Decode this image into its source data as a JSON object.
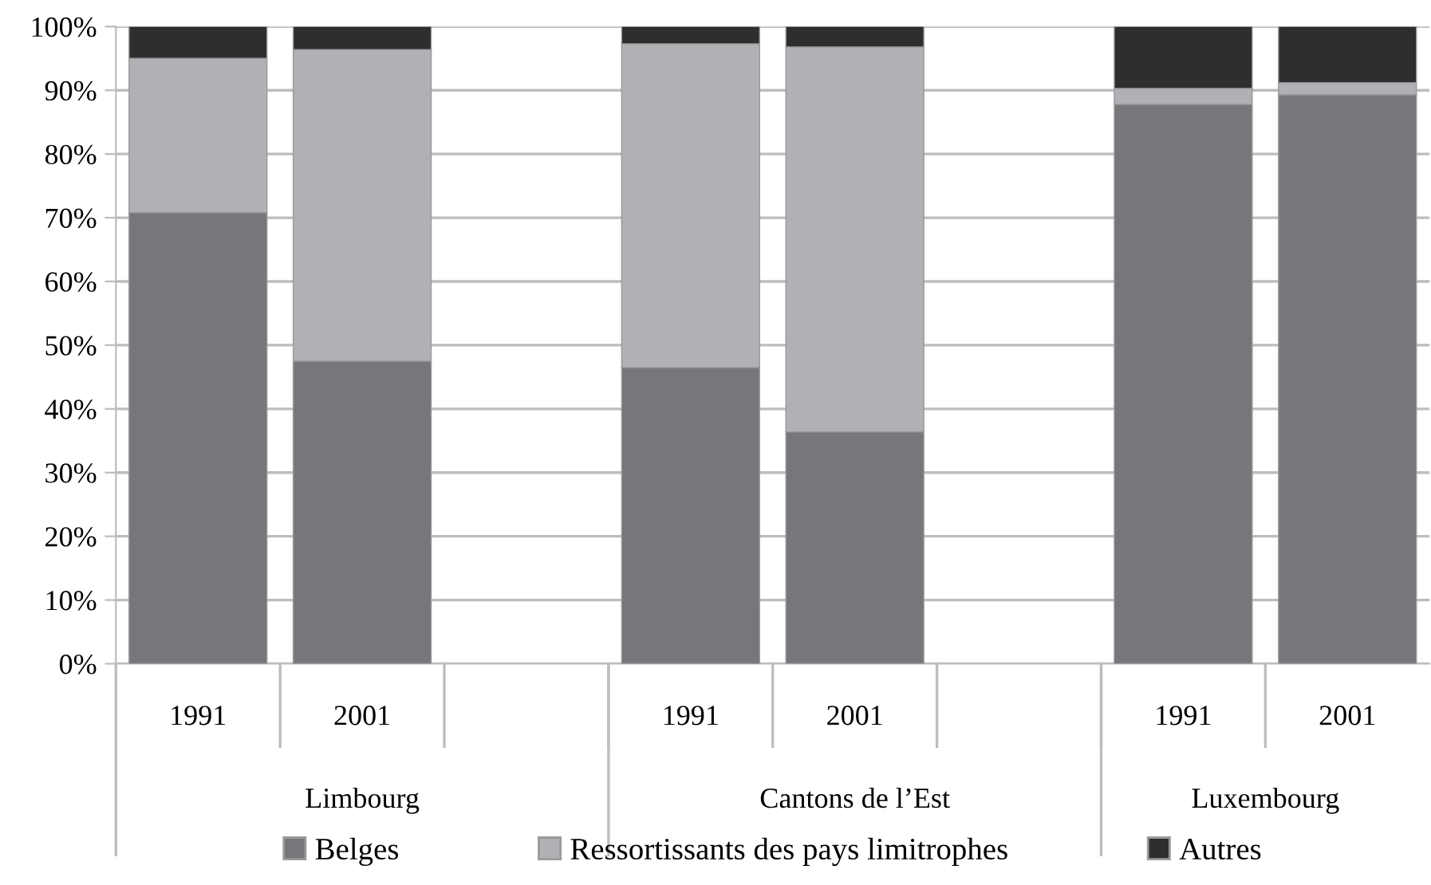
{
  "chart_data": {
    "type": "bar",
    "stacked": true,
    "categories": [
      "1991",
      "2001",
      null,
      "1991",
      "2001",
      null,
      "1991",
      "2001"
    ],
    "series": [
      {
        "name": "Belges",
        "color": "#76777b",
        "values": [
          70.8,
          47.5,
          null,
          46.5,
          36.4,
          null,
          87.8,
          89.3
        ]
      },
      {
        "name": "Ressortissants des pays limitrophes",
        "color": "#b0b1b5",
        "values": [
          24.2,
          48.9,
          null,
          50.8,
          60.4,
          null,
          2.5,
          1.9
        ]
      },
      {
        "name": "Autres",
        "color": "#2f2d2e",
        "values": [
          5.0,
          3.6,
          null,
          2.7,
          3.2,
          null,
          9.7,
          8.8
        ]
      }
    ],
    "annotations": [
      "Limbourg",
      "Cantons de l’Est",
      "Luxembourg"
    ],
    "ylim": [
      0,
      100
    ],
    "yticks": [
      {
        "value": 0,
        "label": "0%"
      },
      {
        "value": 10,
        "label": "10%"
      },
      {
        "value": 20,
        "label": "20%"
      },
      {
        "value": 30,
        "label": "30%"
      },
      {
        "value": 40,
        "label": "40%"
      },
      {
        "value": 50,
        "label": "50%"
      },
      {
        "value": 60,
        "label": "60%"
      },
      {
        "value": 70,
        "label": "70%"
      },
      {
        "value": 80,
        "label": "80%"
      },
      {
        "value": 90,
        "label": "90%"
      },
      {
        "value": 100,
        "label": "100%"
      }
    ],
    "grid": "y",
    "legend": "bottom"
  }
}
